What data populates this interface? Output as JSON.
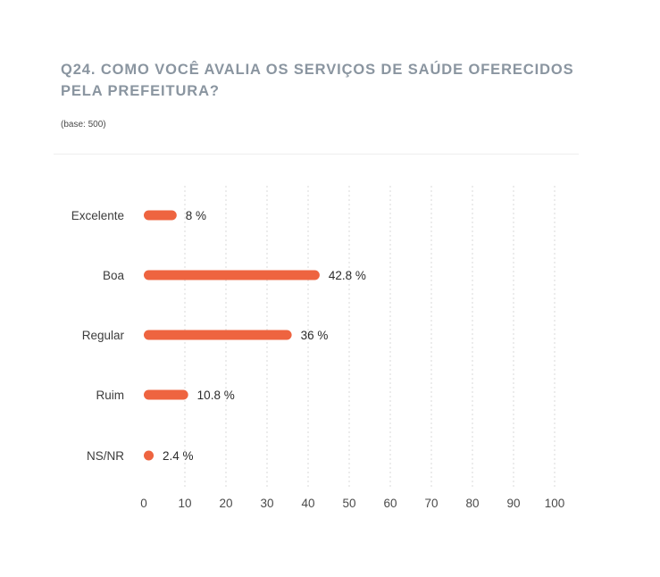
{
  "header": {
    "title": "Q24. COMO VOCÊ AVALIA OS SERVIÇOS DE SAÚDE OFERECIDOS PELA PREFEITURA?",
    "base": "(base: 500)"
  },
  "colors": {
    "bar": "#ee6440",
    "grid": "#d9d9d9",
    "title": "#8a95a0"
  },
  "chart_data": {
    "type": "bar",
    "orientation": "horizontal",
    "categories": [
      "Excelente",
      "Boa",
      "Regular",
      "Ruim",
      "NS/NR"
    ],
    "values": [
      8,
      42.8,
      36,
      10.8,
      2.4
    ],
    "value_labels": [
      "8 %",
      "42.8 %",
      "36 %",
      "10.8 %",
      "2.4 %"
    ],
    "xlim": [
      0,
      100
    ],
    "xticks": [
      "0",
      "10",
      "20",
      "30",
      "40",
      "50",
      "60",
      "70",
      "80",
      "90",
      "100"
    ],
    "grid": true,
    "legend": false
  }
}
